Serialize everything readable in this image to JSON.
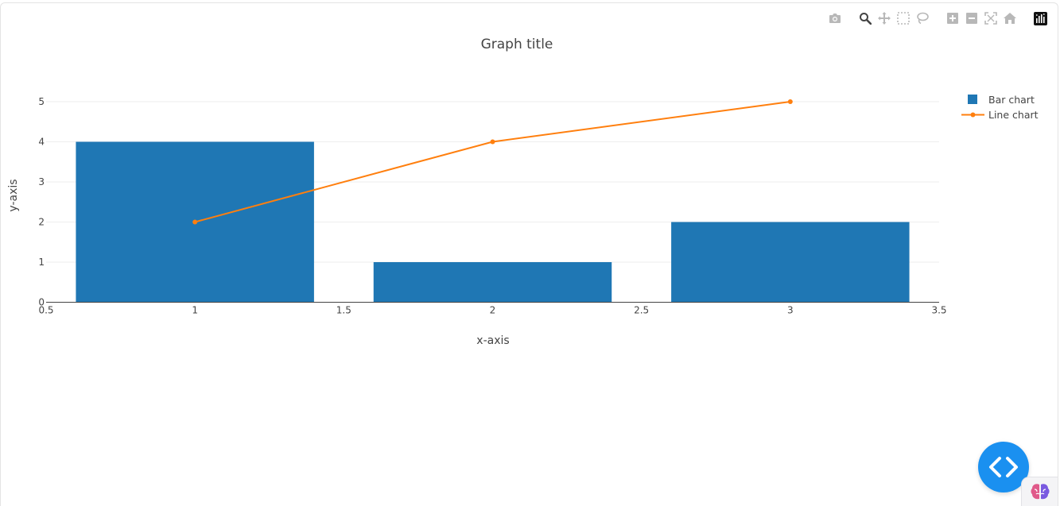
{
  "toolbar": {
    "buttons": [
      {
        "name": "camera-icon",
        "tooltip": "Download plot as a png"
      },
      {
        "name": "zoom-icon",
        "tooltip": "Zoom"
      },
      {
        "name": "pan-icon",
        "tooltip": "Pan"
      },
      {
        "name": "box-select-icon",
        "tooltip": "Box Select"
      },
      {
        "name": "lasso-select-icon",
        "tooltip": "Lasso Select"
      },
      {
        "name": "zoom-in-icon",
        "tooltip": "Zoom in"
      },
      {
        "name": "zoom-out-icon",
        "tooltip": "Zoom out"
      },
      {
        "name": "autoscale-icon",
        "tooltip": "Autoscale"
      },
      {
        "name": "reset-axes-icon",
        "tooltip": "Reset axes"
      },
      {
        "name": "plotly-logo-icon",
        "tooltip": "Produced with Plotly"
      }
    ],
    "active": "zoom-icon"
  },
  "chart_data": {
    "type": "bar",
    "title": "Graph title",
    "xlabel": "x-axis",
    "ylabel": "y-axis",
    "xlim": [
      0.5,
      3.5
    ],
    "ylim": [
      0,
      5.5
    ],
    "xticks": [
      "0.5",
      "1",
      "1.5",
      "2",
      "2.5",
      "3",
      "3.5"
    ],
    "xtick_values": [
      0.5,
      1,
      1.5,
      2,
      2.5,
      3,
      3.5
    ],
    "yticks": [
      "0",
      "1",
      "2",
      "3",
      "4",
      "5"
    ],
    "ytick_values": [
      0,
      1,
      2,
      3,
      4,
      5
    ],
    "grid": true,
    "legend_position": "top-right",
    "bar_width": 0.8,
    "series": [
      {
        "name": "Bar chart",
        "type": "bar",
        "color": "#1f77b4",
        "x": [
          1,
          2,
          3
        ],
        "y": [
          4,
          1,
          2
        ]
      },
      {
        "name": "Line chart",
        "type": "line",
        "color": "#ff7f0e",
        "x": [
          1,
          2,
          3
        ],
        "y": [
          2,
          4,
          5
        ]
      }
    ]
  },
  "widgets": {
    "code_button_icon": "code-brackets-icon",
    "badge_icon": "brain-icon",
    "accent": "#1a90f0"
  }
}
